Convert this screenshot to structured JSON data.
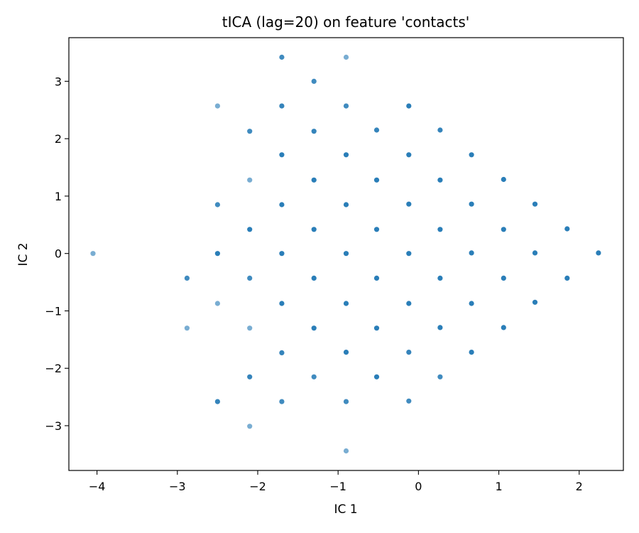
{
  "chart_data": {
    "type": "scatter",
    "title": "tICA (lag=20) on feature 'contacts'",
    "xlabel": "IC 1",
    "ylabel": "IC 2",
    "xlim": [
      -4.35,
      2.55
    ],
    "ylim": [
      -3.78,
      3.76
    ],
    "xticks": [
      -4,
      -3,
      -2,
      -1,
      0,
      1,
      2
    ],
    "yticks": [
      -3,
      -2,
      -1,
      0,
      1,
      2,
      3
    ],
    "tick_labels": {
      "x": [
        "−4",
        "−3",
        "−2",
        "−1",
        "0",
        "1",
        "2"
      ],
      "y": [
        "−3",
        "−2",
        "−1",
        "0",
        "1",
        "2",
        "3"
      ]
    },
    "grid": false,
    "legend": false,
    "marker_color": "#1f77b4",
    "points": [
      {
        "x": -1.7,
        "y": 3.42,
        "a": 0.85
      },
      {
        "x": -0.9,
        "y": 3.42,
        "a": 0.6
      },
      {
        "x": -1.3,
        "y": 3.0,
        "a": 0.85
      },
      {
        "x": -2.5,
        "y": 2.57,
        "a": 0.6
      },
      {
        "x": -1.7,
        "y": 2.57,
        "a": 0.9
      },
      {
        "x": -0.9,
        "y": 2.57,
        "a": 0.85
      },
      {
        "x": -0.12,
        "y": 2.57,
        "a": 0.95
      },
      {
        "x": -2.1,
        "y": 2.13,
        "a": 0.85
      },
      {
        "x": -1.3,
        "y": 2.13,
        "a": 0.9
      },
      {
        "x": -0.52,
        "y": 2.15,
        "a": 0.9
      },
      {
        "x": 0.27,
        "y": 2.15,
        "a": 0.9
      },
      {
        "x": -1.7,
        "y": 1.72,
        "a": 0.95
      },
      {
        "x": -0.9,
        "y": 1.72,
        "a": 0.95
      },
      {
        "x": -0.12,
        "y": 1.72,
        "a": 0.95
      },
      {
        "x": 0.66,
        "y": 1.72,
        "a": 0.95
      },
      {
        "x": -2.1,
        "y": 1.28,
        "a": 0.6
      },
      {
        "x": -1.3,
        "y": 1.28,
        "a": 0.95
      },
      {
        "x": -0.52,
        "y": 1.28,
        "a": 0.95
      },
      {
        "x": 0.27,
        "y": 1.28,
        "a": 0.95
      },
      {
        "x": 1.06,
        "y": 1.29,
        "a": 0.95
      },
      {
        "x": -2.5,
        "y": 0.85,
        "a": 0.85
      },
      {
        "x": -1.7,
        "y": 0.85,
        "a": 0.95
      },
      {
        "x": -0.9,
        "y": 0.85,
        "a": 0.95
      },
      {
        "x": -0.12,
        "y": 0.86,
        "a": 0.95
      },
      {
        "x": 0.66,
        "y": 0.86,
        "a": 0.95
      },
      {
        "x": 1.45,
        "y": 0.86,
        "a": 0.95
      },
      {
        "x": -2.1,
        "y": 0.42,
        "a": 0.95
      },
      {
        "x": -1.3,
        "y": 0.42,
        "a": 0.95
      },
      {
        "x": -0.52,
        "y": 0.42,
        "a": 0.95
      },
      {
        "x": 0.27,
        "y": 0.42,
        "a": 0.95
      },
      {
        "x": 1.06,
        "y": 0.42,
        "a": 0.95
      },
      {
        "x": 1.85,
        "y": 0.43,
        "a": 0.95
      },
      {
        "x": -4.05,
        "y": 0.0,
        "a": 0.6
      },
      {
        "x": -2.5,
        "y": 0.0,
        "a": 0.95
      },
      {
        "x": -1.7,
        "y": 0.0,
        "a": 0.95
      },
      {
        "x": -0.9,
        "y": 0.0,
        "a": 0.95
      },
      {
        "x": -0.12,
        "y": 0.0,
        "a": 0.95
      },
      {
        "x": 0.66,
        "y": 0.01,
        "a": 0.95
      },
      {
        "x": 1.45,
        "y": 0.01,
        "a": 0.95
      },
      {
        "x": 2.24,
        "y": 0.01,
        "a": 0.95
      },
      {
        "x": -2.88,
        "y": -0.43,
        "a": 0.85
      },
      {
        "x": -2.1,
        "y": -0.43,
        "a": 0.85
      },
      {
        "x": -1.3,
        "y": -0.43,
        "a": 0.95
      },
      {
        "x": -0.52,
        "y": -0.43,
        "a": 0.95
      },
      {
        "x": 0.27,
        "y": -0.43,
        "a": 0.95
      },
      {
        "x": 1.06,
        "y": -0.43,
        "a": 0.95
      },
      {
        "x": 1.85,
        "y": -0.43,
        "a": 0.95
      },
      {
        "x": -2.5,
        "y": -0.87,
        "a": 0.6
      },
      {
        "x": -1.7,
        "y": -0.87,
        "a": 0.95
      },
      {
        "x": -0.9,
        "y": -0.87,
        "a": 0.95
      },
      {
        "x": -0.12,
        "y": -0.87,
        "a": 0.95
      },
      {
        "x": 0.66,
        "y": -0.87,
        "a": 0.95
      },
      {
        "x": 1.45,
        "y": -0.85,
        "a": 0.95
      },
      {
        "x": -2.88,
        "y": -1.3,
        "a": 0.6
      },
      {
        "x": -2.1,
        "y": -1.3,
        "a": 0.6
      },
      {
        "x": -1.3,
        "y": -1.3,
        "a": 0.95
      },
      {
        "x": -0.52,
        "y": -1.3,
        "a": 0.95
      },
      {
        "x": 0.27,
        "y": -1.29,
        "a": 0.95
      },
      {
        "x": 1.06,
        "y": -1.29,
        "a": 0.95
      },
      {
        "x": -1.7,
        "y": -1.73,
        "a": 0.9
      },
      {
        "x": -0.9,
        "y": -1.72,
        "a": 0.95
      },
      {
        "x": -0.12,
        "y": -1.72,
        "a": 0.9
      },
      {
        "x": 0.66,
        "y": -1.72,
        "a": 0.95
      },
      {
        "x": -2.1,
        "y": -2.15,
        "a": 0.9
      },
      {
        "x": -1.3,
        "y": -2.15,
        "a": 0.85
      },
      {
        "x": -0.52,
        "y": -2.15,
        "a": 0.95
      },
      {
        "x": 0.27,
        "y": -2.15,
        "a": 0.85
      },
      {
        "x": -2.5,
        "y": -2.58,
        "a": 0.9
      },
      {
        "x": -1.7,
        "y": -2.58,
        "a": 0.85
      },
      {
        "x": -0.9,
        "y": -2.58,
        "a": 0.85
      },
      {
        "x": -0.12,
        "y": -2.57,
        "a": 0.85
      },
      {
        "x": -2.1,
        "y": -3.01,
        "a": 0.6
      },
      {
        "x": -0.9,
        "y": -3.44,
        "a": 0.6
      }
    ]
  }
}
